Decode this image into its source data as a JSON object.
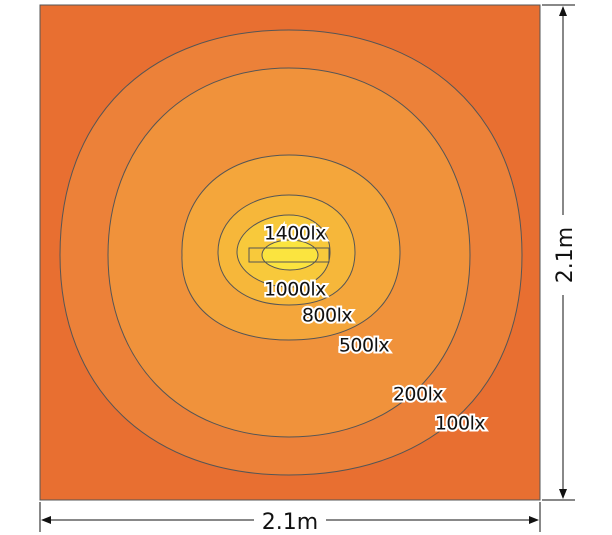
{
  "contours": [
    {
      "label": "1400lx"
    },
    {
      "label": "1000lx"
    },
    {
      "label": "800lx"
    },
    {
      "label": "500lx"
    },
    {
      "label": "200lx"
    },
    {
      "label": "100lx"
    }
  ],
  "dimensions": {
    "width": "2.1m",
    "height": "2.1m"
  }
}
